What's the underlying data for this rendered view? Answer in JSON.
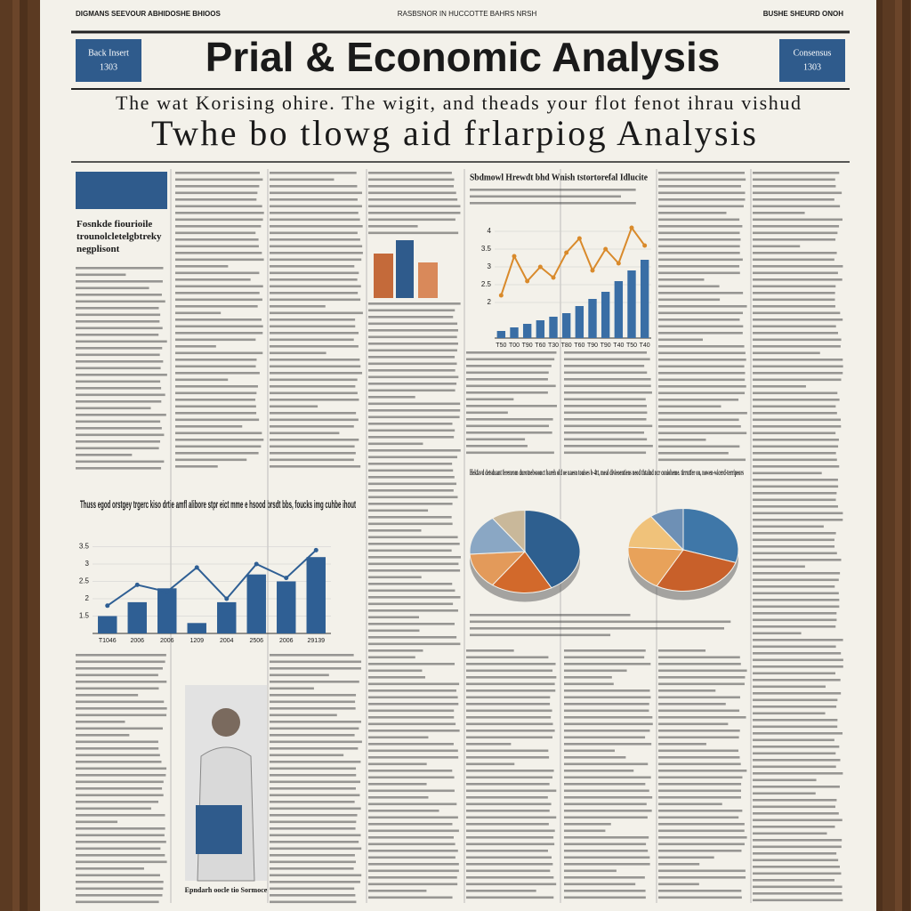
{
  "header": {
    "top_left": "DIGMANS SEEVOUR ABHIDOSHE BHIOOS",
    "top_center": "RASBSNOR IN HUCCOTTE BAHRS NRSH",
    "top_right": "BUSHE SHEURD ONOH",
    "title": "Prial & Economic Analysis",
    "left_box": [
      "Back Insert",
      "1303"
    ],
    "right_box": [
      "Consensus",
      "1303"
    ],
    "subtitle": "The wat Korising ohire. The wigit, and theads your flot fenot ihrau vishud",
    "headline": "Twhe bo tlowg aid frlarpiog Analysis"
  },
  "articles": [
    {
      "heading": "Fosnkde fiourioile trounolcletelgbtreky negplisont"
    },
    {
      "heading": "Sbdmowl Hrewdt bhd Wnish tstortorefal Idlucite"
    },
    {
      "heading": "Hekfavd detsduant ferenrom durotnebsoonct bareh old oe uaesn touises b-4tt, meal divieoentiens neod thtalnd ncr conioheme. tirrutfer on, nowen-wicerd-terripeors"
    },
    {
      "heading": "Thuss egod orstgey trgerc kiso drtie amfl alibore stpr eict mme e hsood brsdt bbs, foucks img cuhbe ihout"
    }
  ],
  "photo_caption": "Epndarh oocle tio Sormoce",
  "charts": [
    {
      "type": "bar-line",
      "categories": [
        "T50",
        "T00",
        "T90",
        "T60",
        "T30",
        "T80",
        "T60",
        "T90",
        "T90",
        "T40",
        "T50",
        "T40"
      ],
      "bars": [
        1.2,
        1.3,
        1.4,
        1.5,
        1.6,
        1.7,
        1.9,
        2.1,
        2.3,
        2.6,
        2.9,
        3.2
      ],
      "line": [
        2.2,
        3.3,
        2.6,
        3.0,
        2.7,
        3.4,
        3.8,
        2.9,
        3.5,
        3.1,
        4.1,
        3.6
      ],
      "bar_color": "#3a6ea5",
      "line_color": "#d98a2b",
      "ylim": [
        1,
        4.5
      ],
      "yticks": [
        2,
        2.5,
        3,
        3.5,
        4
      ]
    },
    {
      "type": "bar-line",
      "categories": [
        "T1046",
        "2006",
        "2006",
        "1209",
        "2004",
        "2506",
        "2006",
        "29139"
      ],
      "bars": [
        1.5,
        1.9,
        2.3,
        1.3,
        1.9,
        2.7,
        2.5,
        3.2
      ],
      "line": [
        1.8,
        2.4,
        2.2,
        2.9,
        2.0,
        3.0,
        2.6,
        3.4
      ],
      "bar_color": "#2f5f94",
      "line_color": "#2f5f94",
      "ylim": [
        1,
        4
      ],
      "yticks": [
        1.5,
        2,
        2.5,
        3,
        3.5
      ]
    },
    {
      "type": "pie",
      "values": [
        42,
        18,
        14,
        16,
        10
      ],
      "colors": [
        "#2e5f8f",
        "#d2692b",
        "#e39a5a",
        "#8aa7c4",
        "#c9b89a"
      ]
    },
    {
      "type": "pie",
      "values": [
        30,
        28,
        18,
        14,
        10
      ],
      "colors": [
        "#3f77a8",
        "#c8602a",
        "#e8a25a",
        "#f0c27a",
        "#6e90b5"
      ]
    }
  ]
}
